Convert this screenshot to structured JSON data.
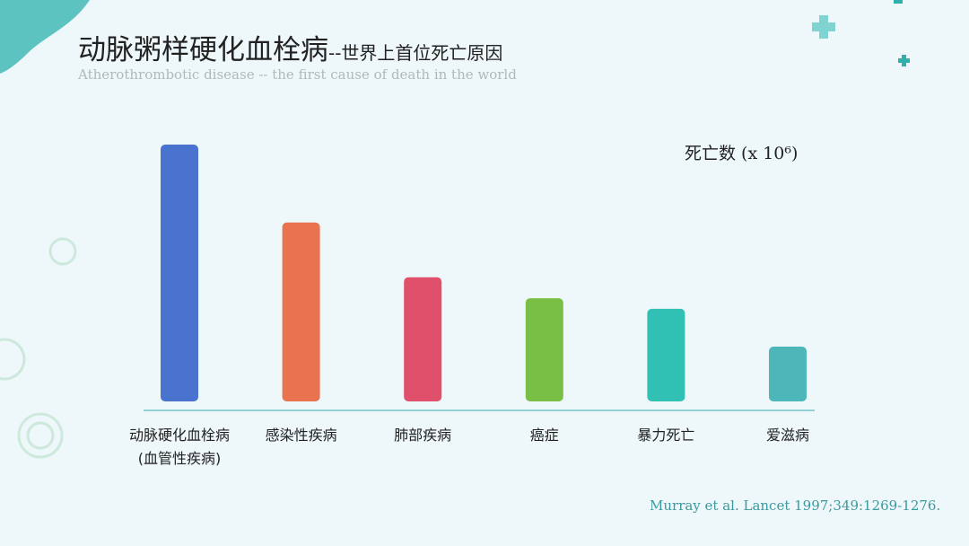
{
  "chart_data": {
    "type": "bar",
    "title": "动脉粥样硬化血栓病",
    "title_suffix": "--世界上首位死亡原因",
    "subtitle": "Atherothrombotic disease -- the first cause of death in the world",
    "y_label": "死亡数 (x 10⁶)",
    "source": "Murray et al. Lancet 1997;349:1269-1276.",
    "categories": [
      "动脉硬化血栓病\n(血管性疾病)",
      "感染性疾病",
      "肺部疾病",
      "癌症",
      "暴力死亡",
      "爱滋病"
    ],
    "values": [
      12.2,
      8.5,
      5.9,
      4.9,
      4.4,
      2.6
    ],
    "colors": [
      "#4a73cf",
      "#e8734e",
      "#e0506a",
      "#7abf45",
      "#30c0b4",
      "#4db6b8"
    ],
    "ylim": [
      0,
      13
    ]
  }
}
